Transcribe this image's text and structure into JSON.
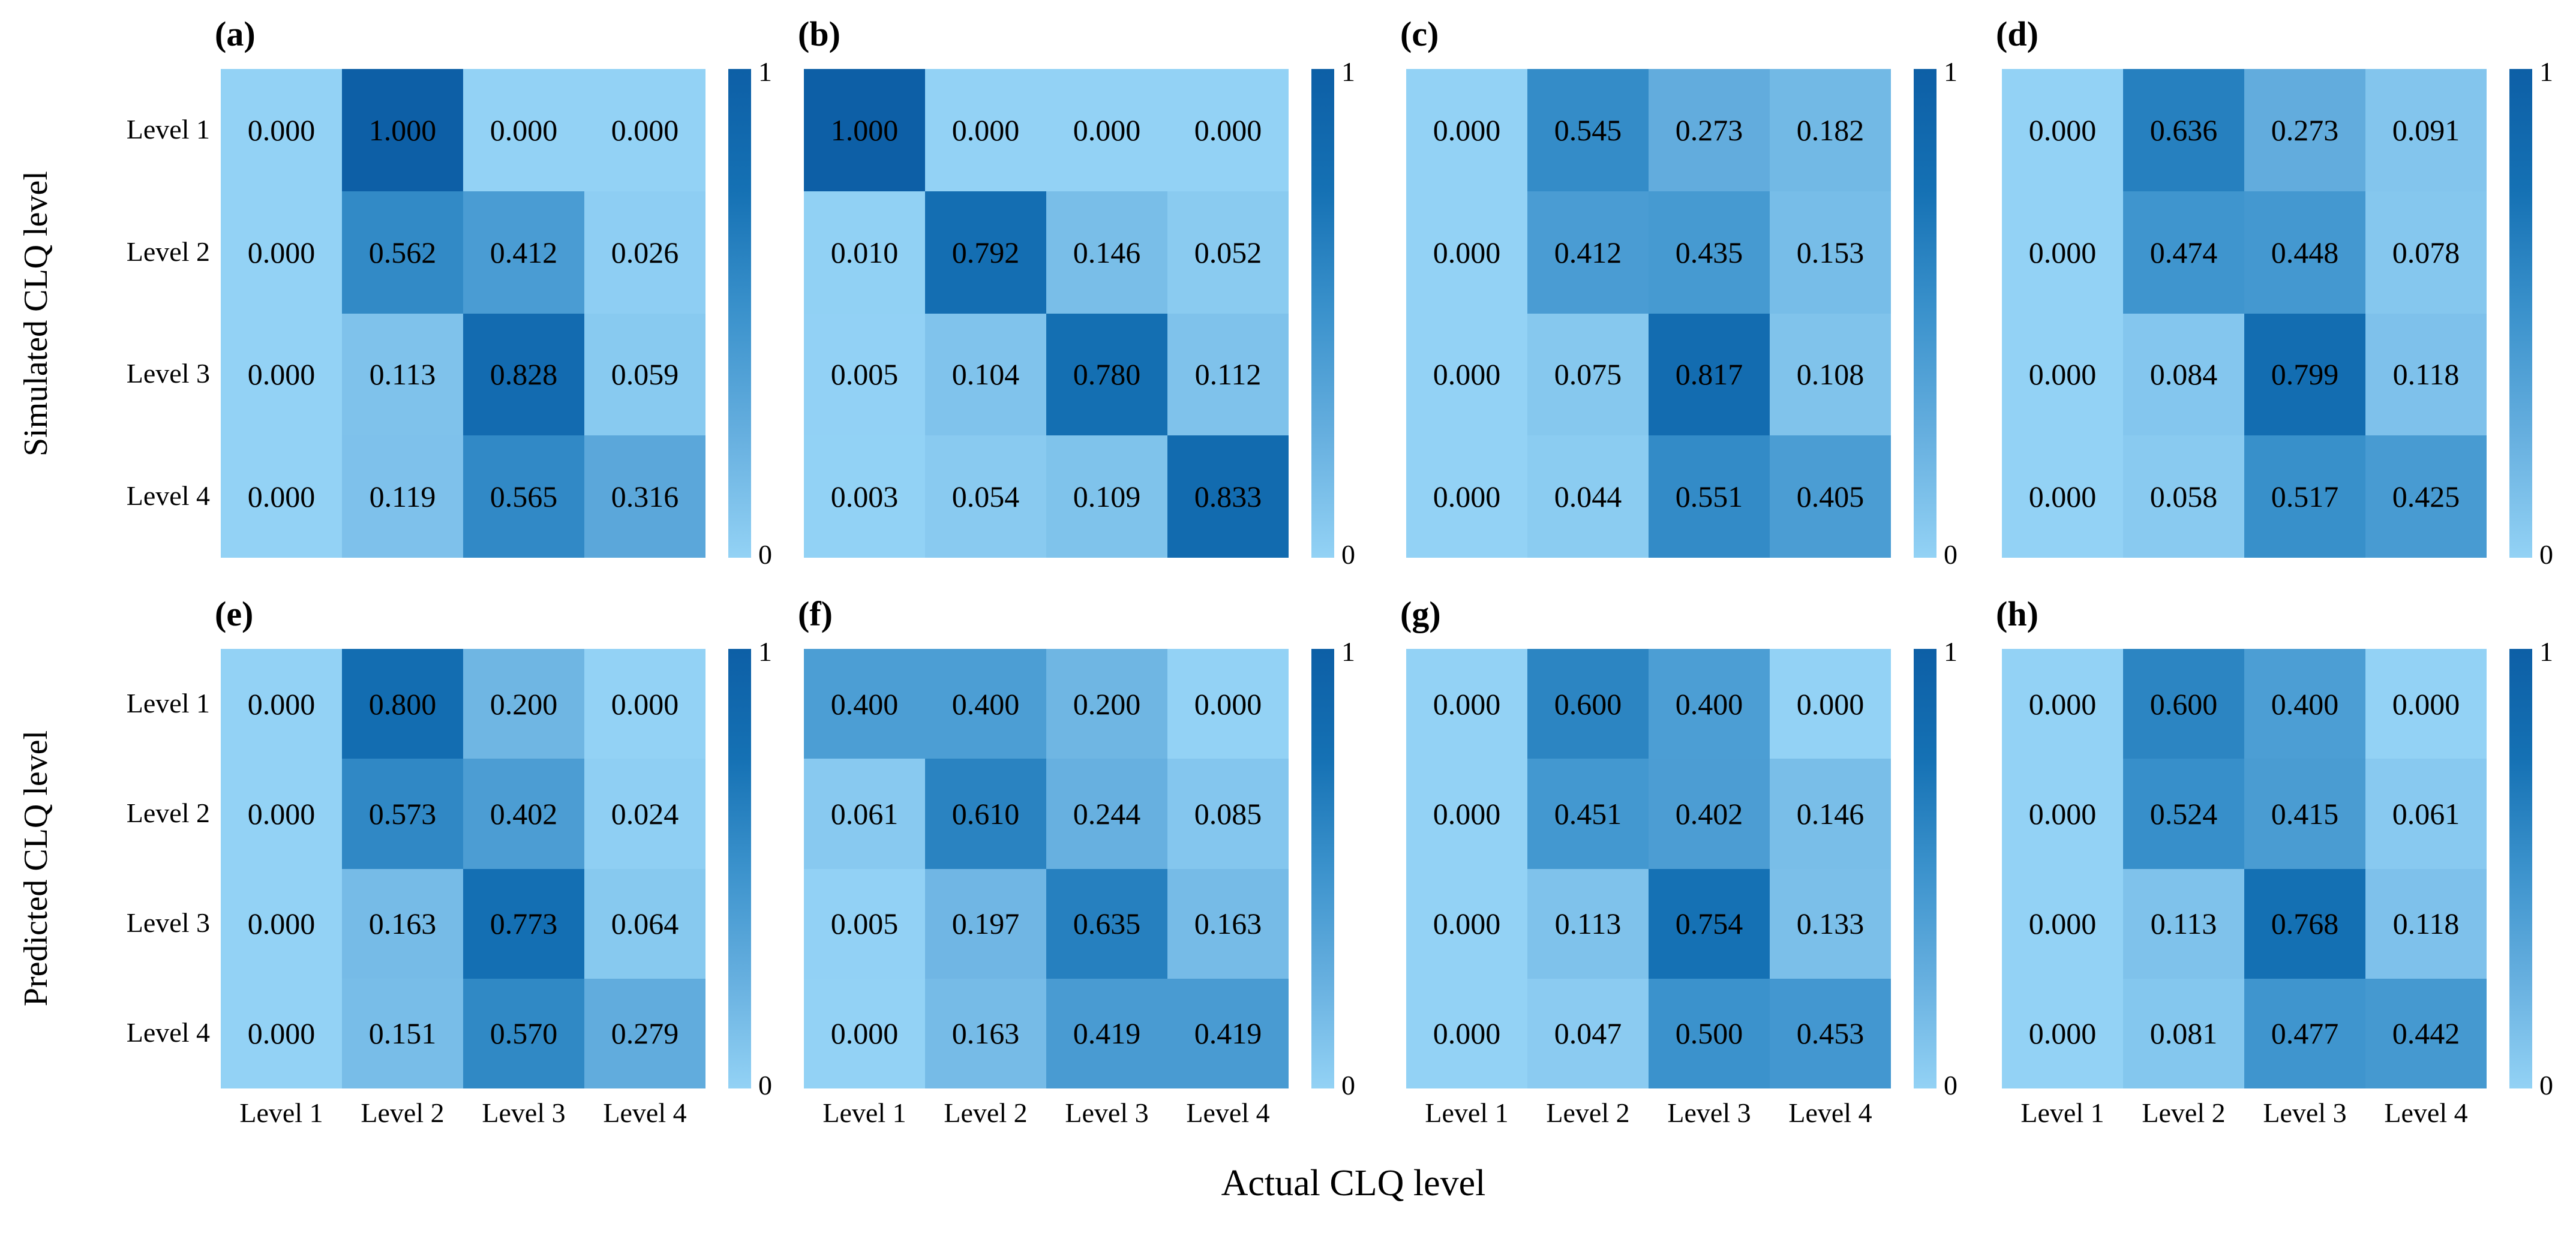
{
  "figure": {
    "background": "#ffffff",
    "text_color": "#000000"
  },
  "colors": {
    "colormap_stops": [
      "#93d2f5",
      "#66afdf",
      "#3b92cc",
      "#1571b4",
      "#0d5fa6"
    ]
  },
  "chart_data": {
    "type": "heatmap",
    "x_axis_title": "Actual CLQ level",
    "x_categories": [
      "Level 1",
      "Level 2",
      "Level 3",
      "Level 4"
    ],
    "y_categories": [
      "Level 1",
      "Level 2",
      "Level 3",
      "Level 4"
    ],
    "value_range": [
      0,
      1
    ],
    "value_decimals": 3,
    "colorbar_ticks": {
      "max": "1",
      "min": "0"
    },
    "legend_position": "colorbar-right-of-each-panel",
    "grid": false,
    "row_groups": [
      {
        "y_axis_title": "Simulated CLQ level",
        "panels": [
          {
            "label": "(a)",
            "values": [
              [
                0.0,
                1.0,
                0.0,
                0.0
              ],
              [
                0.0,
                0.562,
                0.412,
                0.026
              ],
              [
                0.0,
                0.113,
                0.828,
                0.059
              ],
              [
                0.0,
                0.119,
                0.565,
                0.316
              ]
            ]
          },
          {
            "label": "(b)",
            "values": [
              [
                1.0,
                0.0,
                0.0,
                0.0
              ],
              [
                0.01,
                0.792,
                0.146,
                0.052
              ],
              [
                0.005,
                0.104,
                0.78,
                0.112
              ],
              [
                0.003,
                0.054,
                0.109,
                0.833
              ]
            ]
          },
          {
            "label": "(c)",
            "values": [
              [
                0.0,
                0.545,
                0.273,
                0.182
              ],
              [
                0.0,
                0.412,
                0.435,
                0.153
              ],
              [
                0.0,
                0.075,
                0.817,
                0.108
              ],
              [
                0.0,
                0.044,
                0.551,
                0.405
              ]
            ]
          },
          {
            "label": "(d)",
            "values": [
              [
                0.0,
                0.636,
                0.273,
                0.091
              ],
              [
                0.0,
                0.474,
                0.448,
                0.078
              ],
              [
                0.0,
                0.084,
                0.799,
                0.118
              ],
              [
                0.0,
                0.058,
                0.517,
                0.425
              ]
            ]
          }
        ]
      },
      {
        "y_axis_title": "Predicted CLQ level",
        "panels": [
          {
            "label": "(e)",
            "values": [
              [
                0.0,
                0.8,
                0.2,
                0.0
              ],
              [
                0.0,
                0.573,
                0.402,
                0.024
              ],
              [
                0.0,
                0.163,
                0.773,
                0.064
              ],
              [
                0.0,
                0.151,
                0.57,
                0.279
              ]
            ]
          },
          {
            "label": "(f)",
            "values": [
              [
                0.4,
                0.4,
                0.2,
                0.0
              ],
              [
                0.061,
                0.61,
                0.244,
                0.085
              ],
              [
                0.005,
                0.197,
                0.635,
                0.163
              ],
              [
                0.0,
                0.163,
                0.419,
                0.419
              ]
            ]
          },
          {
            "label": "(g)",
            "values": [
              [
                0.0,
                0.6,
                0.4,
                0.0
              ],
              [
                0.0,
                0.451,
                0.402,
                0.146
              ],
              [
                0.0,
                0.113,
                0.754,
                0.133
              ],
              [
                0.0,
                0.047,
                0.5,
                0.453
              ]
            ]
          },
          {
            "label": "(h)",
            "values": [
              [
                0.0,
                0.6,
                0.4,
                0.0
              ],
              [
                0.0,
                0.524,
                0.415,
                0.061
              ],
              [
                0.0,
                0.113,
                0.768,
                0.118
              ],
              [
                0.0,
                0.081,
                0.477,
                0.442
              ]
            ]
          }
        ]
      }
    ]
  }
}
